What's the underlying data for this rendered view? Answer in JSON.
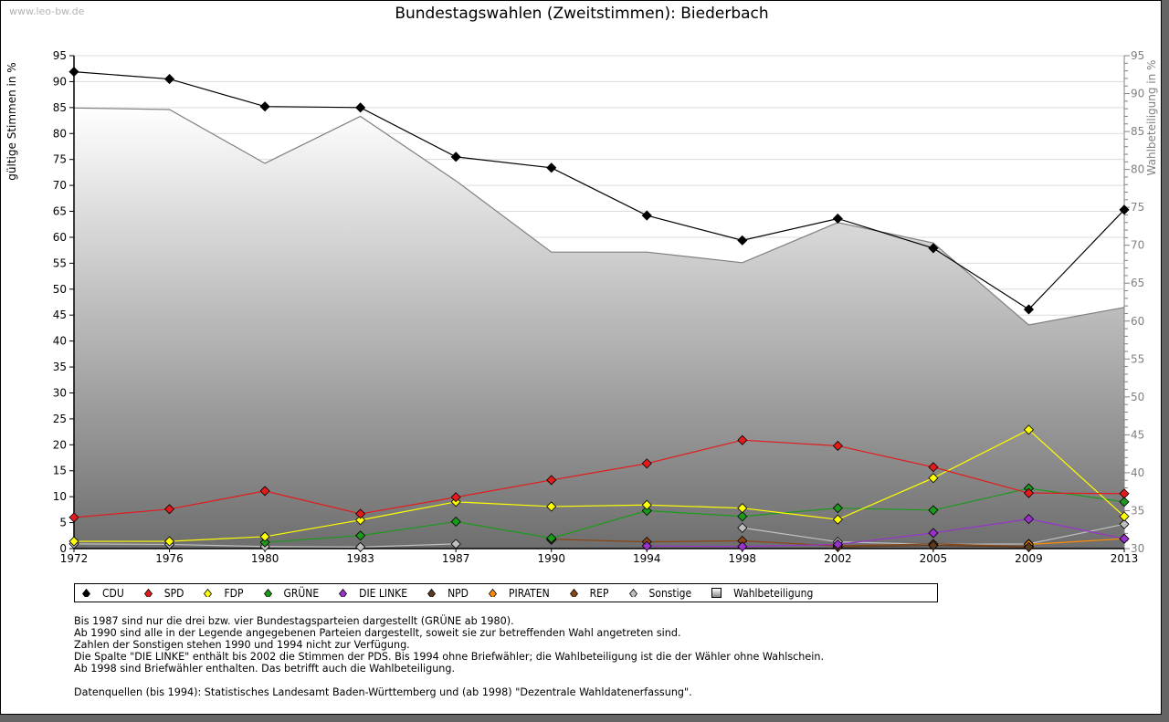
{
  "watermark": "www.leo-bw.de",
  "chart_data": {
    "type": "line",
    "title": "Bundestagswahlen (Zweitstimmen): Biederbach",
    "ylabel": "gültige Stimmen in %",
    "y2label": "Wahlbeteiligung in %",
    "ylim": [
      0,
      95
    ],
    "y2lim": [
      30,
      95
    ],
    "yticks": [
      "0",
      "5",
      "10",
      "15",
      "20",
      "25",
      "30",
      "35",
      "40",
      "45",
      "50",
      "55",
      "60",
      "65",
      "70",
      "75",
      "80",
      "85",
      "90",
      "95"
    ],
    "y2ticks": [
      "30",
      "35",
      "40",
      "45",
      "50",
      "55",
      "60",
      "65",
      "70",
      "75",
      "80",
      "85",
      "90",
      "95"
    ],
    "categories": [
      "1972",
      "1976",
      "1980",
      "1983",
      "1987",
      "1990",
      "1994",
      "1998",
      "2002",
      "2005",
      "2009",
      "2013"
    ],
    "grid": true,
    "legend_position": "bottom",
    "area": {
      "name": "Wahlbeteiligung",
      "axis": "right",
      "values": [
        88.1,
        87.9,
        80.8,
        87.0,
        78.5,
        69.1,
        69.1,
        67.7,
        73.0,
        70.3,
        59.5,
        61.8
      ]
    },
    "series": [
      {
        "name": "CDU",
        "color": "#000000",
        "values": [
          91.9,
          90.5,
          85.2,
          85.0,
          75.5,
          73.4,
          64.2,
          59.4,
          63.6,
          57.9,
          46.1,
          65.3
        ]
      },
      {
        "name": "SPD",
        "color": "#e41a1c",
        "values": [
          6.0,
          7.6,
          11.1,
          6.7,
          9.9,
          13.2,
          16.4,
          20.9,
          19.8,
          15.7,
          10.7,
          10.6
        ]
      },
      {
        "name": "FDP",
        "color": "#ffff00",
        "values": [
          1.4,
          1.4,
          2.3,
          5.5,
          9.0,
          8.1,
          8.4,
          7.8,
          5.6,
          13.6,
          22.9,
          6.2
        ]
      },
      {
        "name": "GRÜNE",
        "color": "#1a9a1a",
        "values": [
          null,
          null,
          1.2,
          2.5,
          5.2,
          2.0,
          7.3,
          6.2,
          7.8,
          7.4,
          11.6,
          9.0
        ]
      },
      {
        "name": "DIE LINKE",
        "color": "#9932cc",
        "values": [
          null,
          null,
          null,
          null,
          null,
          null,
          0.5,
          0.4,
          0.8,
          3.0,
          5.7,
          1.9
        ]
      },
      {
        "name": "NPD",
        "color": "#5c3a1e",
        "values": [
          null,
          null,
          null,
          null,
          null,
          1.7,
          null,
          null,
          0.3,
          0.6,
          0.3,
          null
        ]
      },
      {
        "name": "PIRATEN",
        "color": "#ff8c00",
        "values": [
          null,
          null,
          null,
          null,
          null,
          null,
          null,
          null,
          null,
          null,
          0.8,
          1.9
        ]
      },
      {
        "name": "REP",
        "color": "#8b4513",
        "values": [
          null,
          null,
          null,
          null,
          null,
          1.8,
          1.3,
          1.5,
          0.5,
          0.9,
          0.4,
          null
        ]
      },
      {
        "name": "Sonstige",
        "color": "#c0c0c0",
        "values": [
          0.9,
          0.8,
          0.4,
          0.3,
          0.9,
          null,
          null,
          4.0,
          1.3,
          0.8,
          0.9,
          4.7
        ]
      }
    ]
  },
  "legend": {
    "items": [
      {
        "label": "CDU",
        "color": "#000000"
      },
      {
        "label": "SPD",
        "color": "#e41a1c"
      },
      {
        "label": "FDP",
        "color": "#ffff00"
      },
      {
        "label": "GRÜNE",
        "color": "#1a9a1a"
      },
      {
        "label": "DIE LINKE",
        "color": "#9932cc"
      },
      {
        "label": "NPD",
        "color": "#5c3a1e"
      },
      {
        "label": "PIRATEN",
        "color": "#ff8c00"
      },
      {
        "label": "REP",
        "color": "#8b4513"
      },
      {
        "label": "Sonstige",
        "color": "#c0c0c0"
      }
    ],
    "area_label": "Wahlbeteiligung"
  },
  "notes": [
    "Bis 1987 sind nur die drei bzw. vier Bundestagsparteien dargestellt (GRÜNE ab 1980).",
    "Ab 1990 sind alle in der Legende angegebenen Parteien dargestellt, soweit sie zur betreffenden Wahl angetreten sind.",
    "Zahlen der Sonstigen stehen 1990 und 1994 nicht zur Verfügung.",
    "Die Spalte \"DIE LINKE\" enthält bis 2002 die Stimmen der PDS. Bis 1994 ohne Briefwähler; die Wahlbeteiligung ist die der Wähler ohne Wahlschein.",
    "Ab 1998 sind Briefwähler enthalten. Das betrifft auch die Wahlbeteiligung.",
    "",
    "Datenquellen (bis 1994): Statistisches Landesamt Baden-Württemberg und (ab 1998) \"Dezentrale Wahldatenerfassung\"."
  ]
}
